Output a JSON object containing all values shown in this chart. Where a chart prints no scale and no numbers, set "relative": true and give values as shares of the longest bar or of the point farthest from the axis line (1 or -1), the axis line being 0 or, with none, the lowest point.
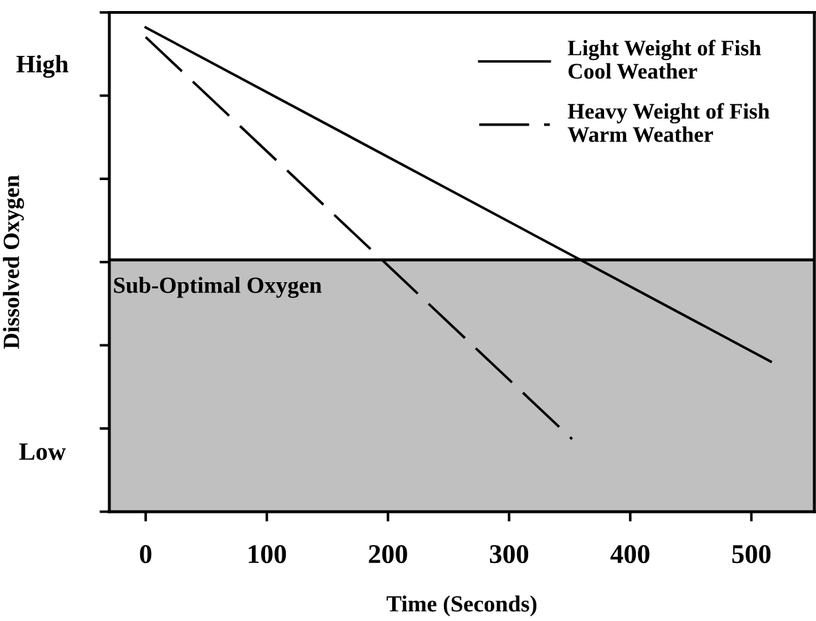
{
  "chart_data": {
    "type": "line",
    "relative": true,
    "xlabel": "Time (Seconds)",
    "ylabel": "Dissolved Oxygen",
    "xlim": [
      -30,
      552
    ],
    "xticks": [
      0,
      100,
      200,
      300,
      400,
      500
    ],
    "series": [
      {
        "name": "Light Weight of Fish\nCool Weather",
        "color": "#000000",
        "line_style": "solid",
        "x": [
          0,
          516
        ],
        "values": [
          1,
          0.31
        ]
      },
      {
        "name": "Heavy Weight of Fish\nWarm Weather",
        "color": "#000000",
        "line_style": "dashed",
        "x": [
          0,
          352
        ],
        "values": [
          0.98,
          0.15
        ]
      }
    ],
    "bands": [
      {
        "axis": "y",
        "from": 0,
        "to": 0.52,
        "label": "Sub-Optimal Oxygen",
        "color": "#c0c0c0"
      }
    ],
    "ref_lines": [
      {
        "axis": "y",
        "value": 0.52,
        "color": "#000000"
      }
    ],
    "annotations": [
      "High",
      "Low"
    ],
    "legend": "top right",
    "grid": false,
    "marker": "none"
  }
}
